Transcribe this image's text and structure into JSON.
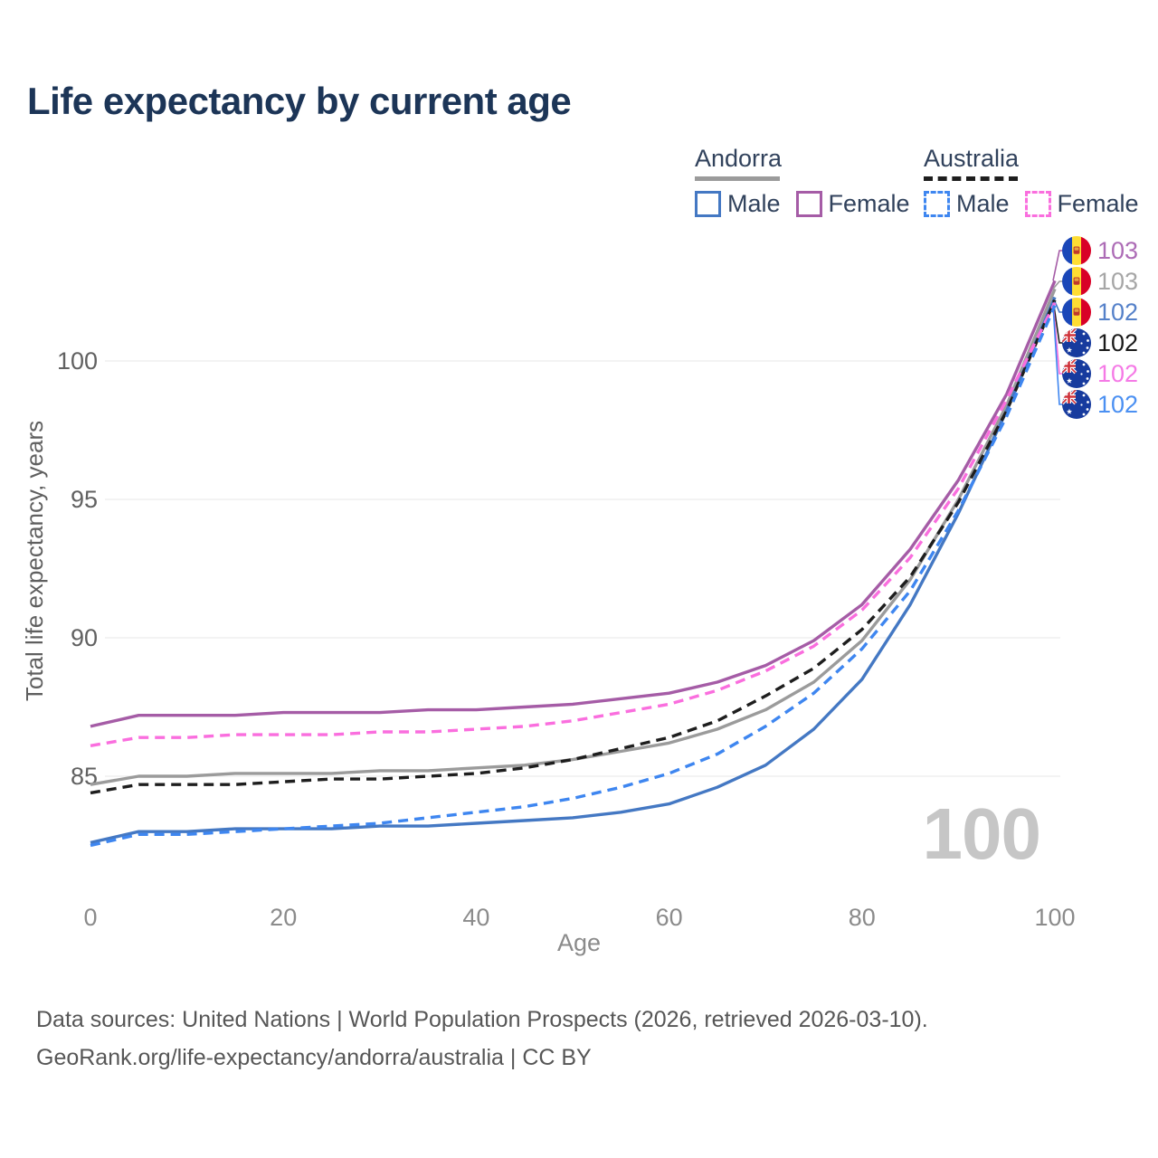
{
  "title": "Life expectancy by current age",
  "legend": {
    "groups": [
      {
        "label": "Andorra",
        "line_style": "solid",
        "line_color": "#9b9b9b",
        "items": [
          {
            "label": "Male",
            "color": "#4478c3",
            "dashed": false
          },
          {
            "label": "Female",
            "color": "#a55ca6",
            "dashed": false
          }
        ]
      },
      {
        "label": "Australia",
        "line_style": "dashed",
        "line_color": "#1e1e1e",
        "items": [
          {
            "label": "Male",
            "color": "#3e86f0",
            "dashed": true
          },
          {
            "label": "Female",
            "color": "#fa6ede",
            "dashed": true
          }
        ]
      }
    ]
  },
  "watermark": "100",
  "footer": {
    "line1": "Data sources: United Nations | World Population Prospects (2026, retrieved 2026-03-10).",
    "line2": "GeoRank.org/life-expectancy/andorra/australia | CC BY"
  },
  "chart_data": {
    "type": "line",
    "title": "Life expectancy by current age",
    "xlabel": "Age",
    "ylabel": "Total life expectancy, years",
    "x": [
      0,
      5,
      10,
      15,
      20,
      25,
      30,
      35,
      40,
      45,
      50,
      55,
      60,
      65,
      70,
      75,
      80,
      85,
      90,
      95,
      100
    ],
    "xticks": [
      0,
      20,
      40,
      60,
      80,
      100
    ],
    "yticks": [
      85,
      90,
      95,
      100
    ],
    "xlim": [
      0,
      100
    ],
    "ylim": [
      82,
      104
    ],
    "grid": true,
    "legend_position": "top-right",
    "series": [
      {
        "id": "andorra-female",
        "country": "Andorra",
        "gender": "Female",
        "style": "solid",
        "color": "#a55ca6",
        "label_color": "#ad6cb6",
        "end_label": "103",
        "values": [
          86.8,
          87.2,
          87.2,
          87.2,
          87.3,
          87.3,
          87.3,
          87.4,
          87.4,
          87.5,
          87.6,
          87.8,
          88.0,
          88.4,
          89.0,
          89.9,
          91.2,
          93.2,
          95.7,
          98.8,
          102.9
        ]
      },
      {
        "id": "andorra-all",
        "country": "Andorra",
        "gender": "All",
        "style": "solid",
        "color": "#9b9b9b",
        "label_color": "#a6a6a6",
        "end_label": "103",
        "values": [
          84.7,
          85.0,
          85.0,
          85.1,
          85.1,
          85.1,
          85.2,
          85.2,
          85.3,
          85.4,
          85.6,
          85.9,
          86.2,
          86.7,
          87.4,
          88.4,
          89.9,
          92.1,
          95.0,
          98.4,
          102.6
        ]
      },
      {
        "id": "andorra-male",
        "country": "Andorra",
        "gender": "Male",
        "style": "solid",
        "color": "#4478c3",
        "label_color": "#5581c9",
        "end_label": "102",
        "values": [
          82.6,
          83.0,
          83.0,
          83.1,
          83.1,
          83.1,
          83.2,
          83.2,
          83.3,
          83.4,
          83.5,
          83.7,
          84.0,
          84.6,
          85.4,
          86.7,
          88.5,
          91.2,
          94.5,
          98.2,
          102.3
        ]
      },
      {
        "id": "australia-all",
        "country": "Australia",
        "gender": "All",
        "style": "dashed",
        "color": "#1e1e1e",
        "label_color": "#1a1a1a",
        "end_label": "102",
        "values": [
          84.4,
          84.7,
          84.7,
          84.7,
          84.8,
          84.9,
          84.9,
          85.0,
          85.1,
          85.3,
          85.6,
          86.0,
          86.4,
          87.0,
          87.9,
          88.9,
          90.3,
          92.2,
          94.9,
          98.2,
          102.2
        ]
      },
      {
        "id": "australia-female",
        "country": "Australia",
        "gender": "Female",
        "style": "dashed",
        "color": "#fa6ede",
        "label_color": "#f57ae6",
        "end_label": "102",
        "values": [
          86.1,
          86.4,
          86.4,
          86.5,
          86.5,
          86.5,
          86.6,
          86.6,
          86.7,
          86.8,
          87.0,
          87.3,
          87.6,
          88.1,
          88.8,
          89.7,
          91.0,
          92.9,
          95.4,
          98.6,
          102.1
        ]
      },
      {
        "id": "australia-male",
        "country": "Australia",
        "gender": "Male",
        "style": "dashed",
        "color": "#3e86f0",
        "label_color": "#4b90f2",
        "end_label": "102",
        "values": [
          82.5,
          82.9,
          82.9,
          83.0,
          83.1,
          83.2,
          83.3,
          83.5,
          83.7,
          83.9,
          84.2,
          84.6,
          85.1,
          85.8,
          86.8,
          88.0,
          89.6,
          91.7,
          94.6,
          98.0,
          102.0
        ]
      }
    ]
  }
}
